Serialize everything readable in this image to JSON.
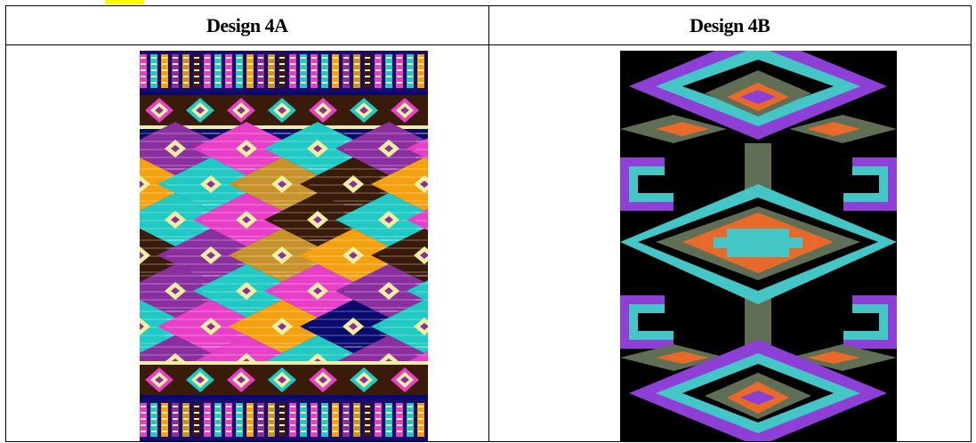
{
  "table": {
    "headers": [
      "Design 4A",
      "Design 4B"
    ]
  },
  "images": {
    "design_a": {
      "subject": "southwestern kilim rug pattern with diamond motifs",
      "colors": [
        "#0a0a6e",
        "#e83fc9",
        "#20c9c4",
        "#f5a00e",
        "#3a1a08",
        "#8b2fa0",
        "#c8922a",
        "#f0f0a0"
      ]
    },
    "design_b": {
      "subject": "southwestern diamond pattern on black background",
      "colors": [
        "#000000",
        "#8e3fd6",
        "#45c6c6",
        "#e86a2a",
        "#5f6e55",
        "#f0ede0"
      ]
    }
  }
}
